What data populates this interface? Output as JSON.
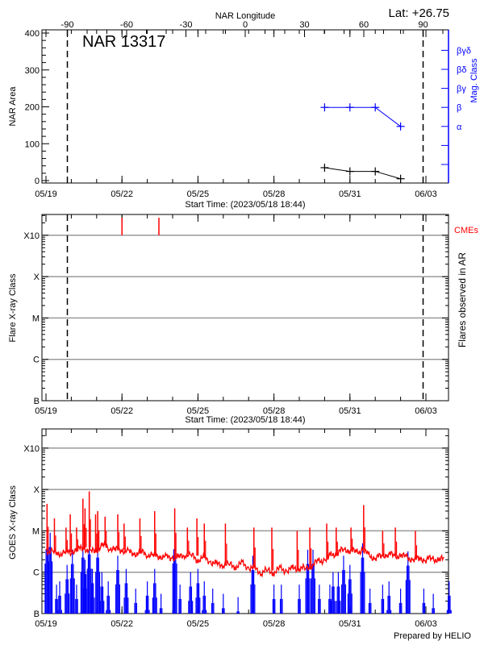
{
  "header": {
    "longitude_label": "NAR Longitude",
    "latitude": "Lat: +26.75",
    "region": "NAR 13317",
    "prepared_by": "Prepared by HELIO"
  },
  "colors": {
    "axis": "#000000",
    "grid": "#999999",
    "mag_class": "#0000ff",
    "cme": "#ff0000",
    "goes_long": "#ff0000",
    "goes_short": "#0000ff"
  },
  "chart_data": [
    {
      "type": "line",
      "panel": "area",
      "title": "NAR 13317",
      "ylabel": "NAR Area",
      "y2label": "Mag. Class",
      "xlabel": "Start Time: (2023/05/18 18:44)",
      "x2label": "NAR Longitude",
      "x_ticks": [
        "05/19",
        "05/22",
        "05/25",
        "05/28",
        "05/31",
        "06/03"
      ],
      "x2_ticks": [
        -90,
        -60,
        -30,
        0,
        30,
        60,
        90
      ],
      "y_ticks": [
        0,
        100,
        200,
        300,
        400
      ],
      "ylim": [
        0,
        400
      ],
      "y2_ticks": [
        "α",
        "β",
        "βγ",
        "βδ",
        "βγδ"
      ],
      "limb_longitudes": [
        -90,
        90
      ],
      "series": [
        {
          "kind": "area",
          "points": [
            [
              "2023-05-30T00:00",
              35
            ],
            [
              "2023-05-31T00:00",
              25
            ],
            [
              "2023-06-01T00:00",
              25
            ],
            [
              "2023-06-02T00:00",
              5
            ]
          ]
        },
        {
          "kind": "mag_class",
          "points": [
            [
              "2023-05-30T00:00",
              "β"
            ],
            [
              "2023-05-31T00:00",
              "β"
            ],
            [
              "2023-06-01T00:00",
              "β"
            ],
            [
              "2023-06-02T00:00",
              "α"
            ]
          ]
        }
      ]
    },
    {
      "type": "scatter",
      "panel": "flares",
      "ylabel": "Flare X-ray Class",
      "y2label": "Flares observed in AR",
      "xlabel": "Start Time: (2023/05/18 18:44)",
      "x_ticks": [
        "05/19",
        "05/22",
        "05/25",
        "05/28",
        "05/31",
        "06/03"
      ],
      "y_ticks": [
        [
          "X10",
          0.001
        ],
        [
          "X",
          0.0001
        ],
        [
          "M",
          1e-05
        ],
        [
          "C",
          1e-06
        ],
        [
          "B",
          1e-07
        ]
      ],
      "yscale": "log",
      "grid": true,
      "cme_label": "CMEs",
      "cmes": [
        "2023-05-22T00:00",
        "2023-05-23T11:00"
      ],
      "flares": []
    },
    {
      "type": "line",
      "panel": "goes",
      "ylabel": "GOES X-ray Class",
      "x_ticks": [
        "05/19",
        "05/22",
        "05/25",
        "05/28",
        "05/31",
        "06/03"
      ],
      "y_ticks": [
        [
          "X10",
          0.001
        ],
        [
          "X",
          0.0001
        ],
        [
          "M",
          1e-05
        ],
        [
          "C",
          1e-06
        ],
        [
          "B",
          1e-07
        ]
      ],
      "yscale": "log",
      "grid": true,
      "long_channel_6h": {
        "2023-05-19": [
          3.5e-06,
          3e-06,
          2.8e-06,
          3e-06
        ],
        "2023-05-20": [
          3.2e-06,
          3.5e-06,
          4e-06,
          3e-06
        ],
        "2023-05-21": [
          3.5e-06,
          4.5e-06,
          4e-06,
          3.5e-06
        ],
        "2023-05-22": [
          3.5e-06,
          3e-06,
          2.8e-06,
          3e-06
        ],
        "2023-05-23": [
          2.8e-06,
          2.5e-06,
          2.5e-06,
          2.2e-06
        ],
        "2023-05-24": [
          2.3e-06,
          2.2e-06,
          2.8e-06,
          2.5e-06
        ],
        "2023-05-25": [
          2e-06,
          2.2e-06,
          1.8e-06,
          1.5e-06
        ],
        "2023-05-26": [
          1.6e-06,
          1.5e-06,
          1.4e-06,
          1.6e-06
        ],
        "2023-05-27": [
          1.3e-06,
          1.2e-06,
          1e-06,
          1.1e-06
        ],
        "2023-05-28": [
          1e-06,
          1.2e-06,
          1.1e-06,
          1.2e-06
        ],
        "2023-05-29": [
          1.3e-06,
          1.2e-06,
          1.5e-06,
          1.8e-06
        ],
        "2023-05-30": [
          2e-06,
          2.5e-06,
          3e-06,
          3.5e-06
        ],
        "2023-05-31": [
          3.5e-06,
          3e-06,
          3.5e-06,
          2.5e-06
        ],
        "2023-06-01": [
          2.2e-06,
          2.5e-06,
          2.8e-06,
          2.5e-06
        ],
        "2023-06-02": [
          2.5e-06,
          2.3e-06,
          2e-06,
          2.2e-06
        ],
        "2023-06-03": [
          2e-06,
          2.2e-06,
          1.9e-06,
          2.2e-06
        ]
      },
      "long_channel_peaks": [
        [
          "2023-05-19T01:00",
          4.5e-05
        ],
        [
          "2023-05-19T08:00",
          2e-05
        ],
        [
          "2023-05-19T19:00",
          1.2e-05
        ],
        [
          "2023-05-19T23:00",
          2.5e-05
        ],
        [
          "2023-05-20T05:00",
          1.2e-05
        ],
        [
          "2023-05-20T11:00",
          6e-05
        ],
        [
          "2023-05-20T13:00",
          3.5e-05
        ],
        [
          "2023-05-20T17:00",
          9e-05
        ],
        [
          "2023-05-20T23:00",
          2.5e-05
        ],
        [
          "2023-05-21T01:00",
          3e-05
        ],
        [
          "2023-05-21T08:00",
          2.2e-05
        ],
        [
          "2023-05-21T20:00",
          2.5e-05
        ],
        [
          "2023-05-22T02:00",
          1.5e-05
        ],
        [
          "2023-05-22T17:00",
          2e-05
        ],
        [
          "2023-05-23T07:00",
          3e-05
        ],
        [
          "2023-05-24T02:00",
          3.5e-05
        ],
        [
          "2023-05-24T14:00",
          1.2e-05
        ],
        [
          "2023-05-24T23:00",
          2e-05
        ],
        [
          "2023-05-25T06:00",
          1.5e-05
        ],
        [
          "2023-05-26T02:00",
          1.5e-05
        ],
        [
          "2023-05-27T05:00",
          1.2e-05
        ],
        [
          "2023-05-27T22:00",
          1.2e-05
        ],
        [
          "2023-05-28T22:00",
          1e-05
        ],
        [
          "2023-05-29T10:00",
          1.2e-05
        ],
        [
          "2023-05-30T02:00",
          1.5e-05
        ],
        [
          "2023-05-30T11:00",
          1.2e-05
        ],
        [
          "2023-05-31T01:00",
          1.2e-05
        ],
        [
          "2023-05-31T13:00",
          4.2e-05
        ],
        [
          "2023-06-01T07:00",
          1e-05
        ],
        [
          "2023-06-01T19:00",
          1.2e-05
        ],
        [
          "2023-06-02T14:00",
          1e-05
        ]
      ],
      "short_channel_peaks": [
        [
          "2023-05-19T01:00",
          8e-06
        ],
        [
          "2023-05-19T04:00",
          9e-06
        ],
        [
          "2023-05-19T10:00",
          5e-07
        ],
        [
          "2023-05-19T13:00",
          6e-07
        ],
        [
          "2023-05-19T20:00",
          1.5e-06
        ],
        [
          "2023-05-20T01:00",
          3.5e-06
        ],
        [
          "2023-05-20T05:00",
          5e-07
        ],
        [
          "2023-05-20T11:00",
          5e-06
        ],
        [
          "2023-05-20T13:00",
          2e-06
        ],
        [
          "2023-05-20T17:00",
          6e-06
        ],
        [
          "2023-05-20T20:00",
          1.2e-06
        ],
        [
          "2023-05-21T01:00",
          5e-06
        ],
        [
          "2023-05-21T05:00",
          1e-06
        ],
        [
          "2023-05-21T11:00",
          6e-07
        ],
        [
          "2023-05-21T20:00",
          2.5e-06
        ],
        [
          "2023-05-22T04:00",
          1.2e-06
        ],
        [
          "2023-05-22T13:00",
          4e-07
        ],
        [
          "2023-05-23T00:00",
          6e-07
        ],
        [
          "2023-05-23T07:00",
          1.2e-06
        ],
        [
          "2023-05-23T13:00",
          3e-07
        ],
        [
          "2023-05-24T02:00",
          8e-06
        ],
        [
          "2023-05-24T07:00",
          5e-07
        ],
        [
          "2023-05-24T17:00",
          1e-06
        ],
        [
          "2023-05-25T00:00",
          1.2e-06
        ],
        [
          "2023-05-25T06:00",
          6e-07
        ],
        [
          "2023-05-25T14:00",
          4e-07
        ],
        [
          "2023-05-26T00:00",
          3e-07
        ],
        [
          "2023-05-26T14:00",
          2.5e-07
        ],
        [
          "2023-05-27T04:00",
          2.5e-06
        ],
        [
          "2023-05-28T00:00",
          5e-07
        ],
        [
          "2023-05-28T07:00",
          5e-07
        ],
        [
          "2023-05-29T00:00",
          5e-07
        ],
        [
          "2023-05-29T08:00",
          3.5e-06
        ],
        [
          "2023-05-29T13:00",
          3.5e-06
        ],
        [
          "2023-05-29T19:00",
          5e-07
        ],
        [
          "2023-05-30T05:00",
          5e-07
        ],
        [
          "2023-05-30T08:00",
          1e-06
        ],
        [
          "2023-05-30T13:00",
          1e-06
        ],
        [
          "2023-05-30T18:00",
          2.5e-06
        ],
        [
          "2023-05-31T00:00",
          1.5e-06
        ],
        [
          "2023-05-31T12:00",
          5e-06
        ],
        [
          "2023-05-31T19:00",
          4e-07
        ],
        [
          "2023-06-01T07:00",
          5e-07
        ],
        [
          "2023-06-01T13:00",
          6e-07
        ],
        [
          "2023-06-02T00:00",
          4e-07
        ],
        [
          "2023-06-02T07:00",
          3.2e-06
        ],
        [
          "2023-06-02T22:00",
          4e-07
        ],
        [
          "2023-06-03T07:00",
          3e-07
        ],
        [
          "2023-06-03T22:00",
          6e-07
        ]
      ]
    }
  ]
}
